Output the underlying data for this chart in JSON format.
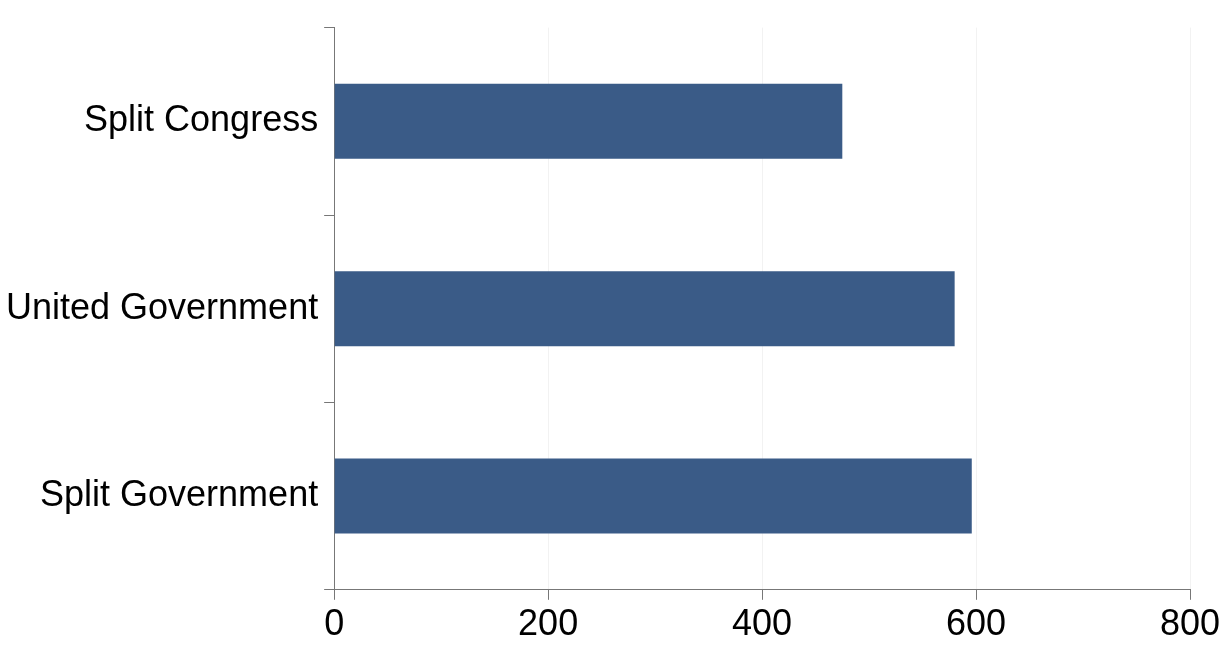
{
  "chart_data": {
    "type": "bar",
    "orientation": "horizontal",
    "categories": [
      "Split Congress",
      "United Government",
      "Split Government"
    ],
    "values": [
      475,
      580,
      596
    ],
    "color": "#3a5b87",
    "xlim": [
      0,
      800
    ],
    "xticks": [
      0,
      200,
      400,
      600,
      800
    ],
    "grid": "x",
    "legend": false
  }
}
